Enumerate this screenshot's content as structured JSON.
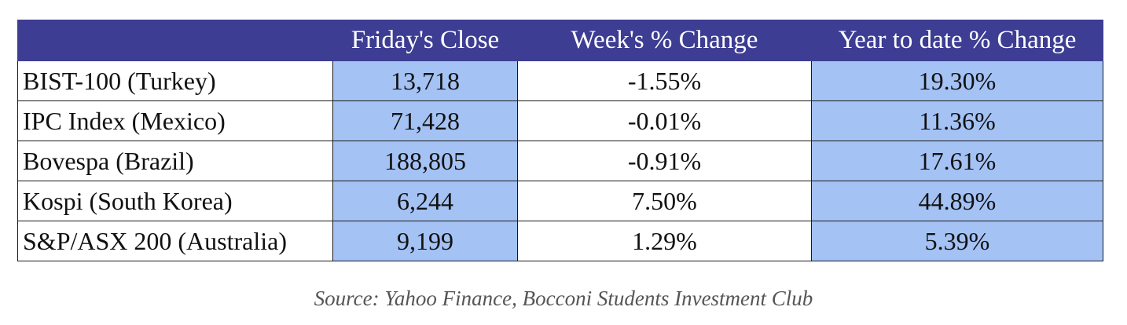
{
  "table": {
    "headers": [
      "",
      "Friday's Close",
      "Week's % Change",
      "Year to date % Change"
    ],
    "rows": [
      [
        "BIST-100 (Turkey)",
        "13,718",
        "-1.55%",
        "19.30%"
      ],
      [
        "IPC Index (Mexico)",
        "71,428",
        "-0.01%",
        "11.36%"
      ],
      [
        "Bovespa (Brazil)",
        "188,805",
        "-0.91%",
        "17.61%"
      ],
      [
        "Kospi (South Korea)",
        "6,244",
        "7.50%",
        "44.89%"
      ],
      [
        "S&P/ASX 200 (Australia)",
        "9,199",
        "1.29%",
        "5.39%"
      ]
    ]
  },
  "source": "Source: Yahoo Finance, Bocconi Students Investment Club",
  "colors": {
    "header_bg": "#3d3d94",
    "header_text": "#ffffff",
    "highlight_cell": "#a4c2f4"
  }
}
